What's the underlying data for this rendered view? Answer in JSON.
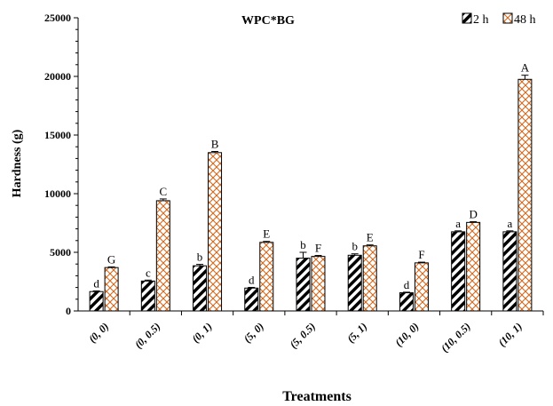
{
  "chart_data": {
    "type": "bar",
    "title": "WPC*BG",
    "xlabel": "Treatments",
    "ylabel": "Hardness (g)",
    "ylim": [
      0,
      25000
    ],
    "yticks": [
      0,
      5000,
      10000,
      15000,
      20000,
      25000
    ],
    "categories": [
      "(0, 0)",
      "(0, 0.5)",
      "(0, 1)",
      "(5, 0)",
      "(5, 0.5)",
      "(5, 1)",
      "(10, 0)",
      "(10, 0.5)",
      "(10, 1)"
    ],
    "legend_position": "top-right",
    "series": [
      {
        "name": "2 h",
        "pattern": "black-diagonal-hatch",
        "values": [
          1650,
          2550,
          3850,
          1950,
          4500,
          4750,
          1550,
          6750,
          6750
        ],
        "errors": [
          60,
          80,
          120,
          60,
          500,
          120,
          50,
          80,
          80
        ],
        "letters": [
          "d",
          "c",
          "b",
          "d",
          "b",
          "b",
          "d",
          "a",
          "a"
        ]
      },
      {
        "name": "48 h",
        "pattern": "orange-crosshatch",
        "values": [
          3700,
          9400,
          13500,
          5850,
          4650,
          5550,
          4100,
          7550,
          19750
        ],
        "errors": [
          60,
          150,
          100,
          80,
          80,
          80,
          60,
          60,
          350
        ],
        "letters": [
          "G",
          "C",
          "B",
          "E",
          "F",
          "E",
          "F",
          "D",
          "A"
        ]
      }
    ],
    "colors": {
      "series_2h": "#000000",
      "series_48h": "#d2691e"
    }
  }
}
